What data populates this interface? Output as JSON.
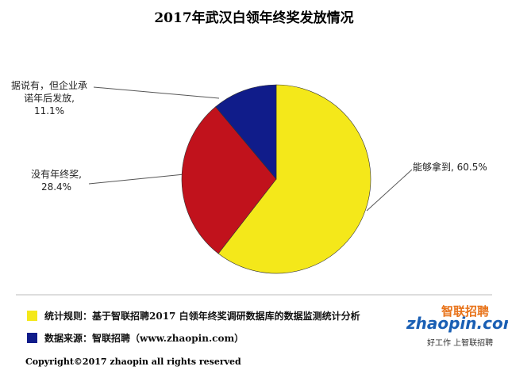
{
  "chart_data": {
    "type": "pie",
    "title": "2017年武汉白领年终奖发放情况",
    "categories": [
      "能够拿到,",
      "没有年终奖,",
      "据说有，但企业承诺年后发放,"
    ],
    "values": [
      60.5,
      28.4,
      11.1
    ],
    "value_labels": [
      "60.5%",
      "28.4%",
      "11.1%"
    ],
    "colors": [
      "#f4e81a",
      "#c1121c",
      "#101c8a"
    ],
    "start_angle": 0,
    "direction": "clockwise"
  },
  "notes": [
    {
      "text": "统计规则：基于智联招聘2017 白领年终奖调研数据库的数据监测统计分析",
      "color": "#f4e81a"
    },
    {
      "text": "数据来源：智联招聘（www.zhaopin.com）",
      "color": "#101c8a"
    }
  ],
  "logo": {
    "name": "智联招聘",
    "url": "zhaopin.com",
    "slogan": "好工作 上智联招聘"
  },
  "copyright": "Copyright©2017 zhaopin all rights reserved"
}
